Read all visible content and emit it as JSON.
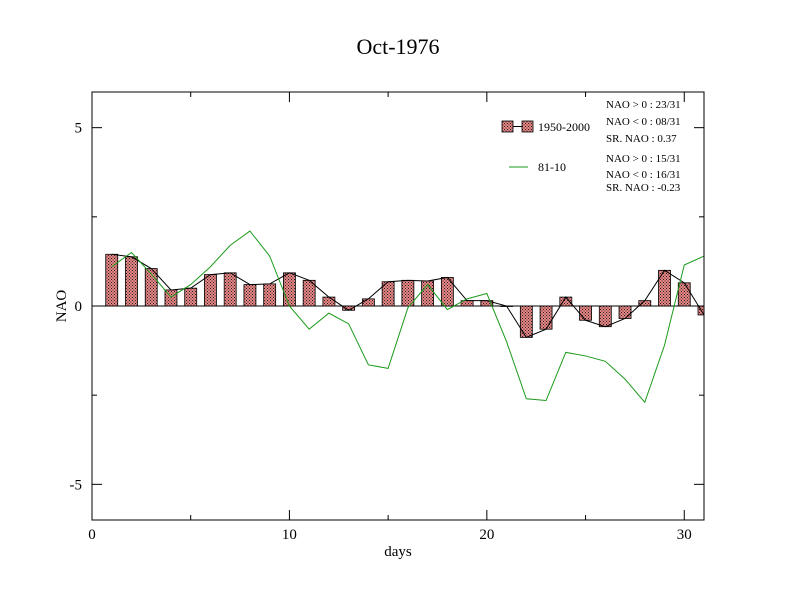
{
  "chart_data": {
    "type": "bar",
    "title": "Oct-1976",
    "xlabel": "days",
    "ylabel": "NAO",
    "xlim": [
      0,
      31
    ],
    "ylim": [
      -6,
      6
    ],
    "x_ticks": [
      0,
      10,
      20,
      30
    ],
    "y_ticks": [
      5,
      0,
      -5
    ],
    "y_tick_labels": [
      "5",
      "0",
      "-5"
    ],
    "x": [
      1,
      2,
      3,
      4,
      5,
      6,
      7,
      8,
      9,
      10,
      11,
      12,
      13,
      14,
      15,
      16,
      17,
      18,
      19,
      20,
      21,
      22,
      23,
      24,
      25,
      26,
      27,
      28,
      29,
      30,
      31
    ],
    "series": [
      {
        "name": "1950-2000",
        "style": "bar+line",
        "color": "#e06666",
        "values": [
          1.45,
          1.38,
          1.05,
          0.45,
          0.5,
          0.88,
          0.93,
          0.6,
          0.62,
          0.93,
          0.72,
          0.25,
          -0.12,
          0.2,
          0.68,
          0.72,
          0.7,
          0.8,
          0.15,
          0.15,
          0.0,
          -0.88,
          -0.65,
          0.25,
          -0.4,
          -0.58,
          -0.35,
          0.15,
          1.0,
          0.65,
          -0.25
        ]
      },
      {
        "name": "81-10",
        "style": "line",
        "color": "#1a9a1a",
        "values": [
          1.1,
          1.5,
          0.9,
          0.25,
          0.6,
          1.1,
          1.7,
          2.1,
          1.4,
          0.0,
          -0.65,
          -0.2,
          -0.5,
          -1.65,
          -1.75,
          -0.05,
          0.6,
          -0.1,
          0.2,
          0.35,
          -1.0,
          -2.6,
          -2.65,
          -1.3,
          -1.4,
          -1.55,
          -2.05,
          -2.7,
          -1.1,
          1.15,
          1.4
        ]
      }
    ],
    "legend_position": "top-right",
    "stats": {
      "s1950": [
        "NAO > 0 : 23/31",
        "NAO < 0 : 08/31",
        "SR. NAO :  0.37"
      ],
      "s8110": [
        "NAO > 0 : 15/31",
        "NAO < 0 : 16/31",
        "SR. NAO : -0.23"
      ]
    }
  }
}
